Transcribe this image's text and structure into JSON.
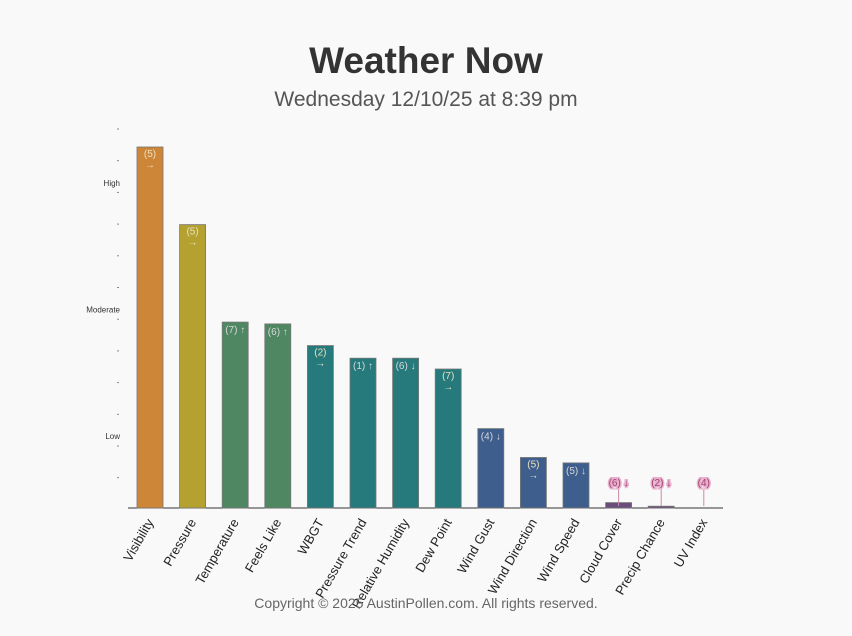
{
  "header": {
    "title": "Weather Now",
    "subtitle": "Wednesday 12/10/25 at 8:39 pm"
  },
  "footer": {
    "copyright": "Copyright © 2025 AustinPollen.com.  All rights reserved."
  },
  "chart_data": {
    "type": "bar",
    "title": "",
    "xlabel": "",
    "ylabel": "",
    "ylim": [
      0,
      10
    ],
    "y_levels": [
      {
        "label": "Low",
        "value": 2
      },
      {
        "label": "Moderate",
        "value": 5.5
      },
      {
        "label": "High",
        "value": 9
      }
    ],
    "grid": false,
    "categories": [
      "Visibility",
      "Pressure",
      "Temperature",
      "Feels Like",
      "WBGT",
      "Pressure Trend",
      "Relative Humidity",
      "Dew Point",
      "Wind Gust",
      "Wind Direction",
      "Wind Speed",
      "Cloud Cover",
      "Precip Chance",
      "UV Index"
    ],
    "values": [
      10,
      7.85,
      5.15,
      5.1,
      4.5,
      4.15,
      4.15,
      3.85,
      2.2,
      1.4,
      1.25,
      0.15,
      0.05,
      0
    ],
    "bar_labels": [
      "(5)",
      "(5)",
      "(7)",
      "(6)",
      "(2)",
      "(1)",
      "(6)",
      "(7)",
      "(4)",
      "(5)",
      "(5)",
      "(6)",
      "(2)",
      "(4)"
    ],
    "trends": [
      "→",
      "→",
      "↑",
      "↑",
      "→",
      "↑",
      "↓",
      "→",
      "↓",
      "→",
      "↓",
      "↓",
      "↓",
      ""
    ],
    "colors": [
      "#cd8538",
      "#b5a12f",
      "#4e8762",
      "#4e8762",
      "#267a7b",
      "#267a7b",
      "#267a7b",
      "#267a7b",
      "#3e5e8e",
      "#3e5e8e",
      "#3e5e8e",
      "#6b4d7c",
      "#6b4d7c",
      "#6b4d7c"
    ]
  }
}
